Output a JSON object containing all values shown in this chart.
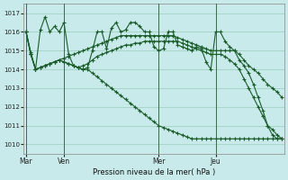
{
  "background_color": "#c8eaea",
  "grid_color": "#99ccbb",
  "line_color": "#1a5c2a",
  "title": "Pression niveau de la mer( hPa )",
  "ylim": [
    1009.5,
    1017.5
  ],
  "yticks": [
    1010,
    1011,
    1012,
    1013,
    1014,
    1015,
    1016,
    1017
  ],
  "day_labels": [
    "Mar",
    "Ven",
    "Mer",
    "Jeu"
  ],
  "day_positions": [
    0,
    8,
    28,
    40
  ],
  "total_points": 56,
  "s1_y": [
    1016.0,
    1014.8,
    1014.0,
    1016.1,
    1016.8,
    1016.0,
    1016.3,
    1016.0,
    1016.5,
    1014.8,
    1014.2,
    1014.1,
    1014.0,
    1014.1,
    1015.0,
    1016.0,
    1016.0,
    1015.1,
    1016.2,
    1016.5,
    1016.0,
    1016.1,
    1016.5,
    1016.5,
    1016.3,
    1016.0,
    1016.0,
    1015.2,
    1015.0,
    1015.1,
    1016.0,
    1016.0,
    1015.3,
    1015.2,
    1015.1,
    1015.0,
    1015.2,
    1015.1,
    1014.4,
    1014.0,
    1016.0,
    1016.0,
    1015.5,
    1015.2,
    1015.0,
    1014.5,
    1014.2,
    1013.8,
    1013.2,
    1012.5,
    1011.8,
    1011.0,
    1010.5,
    1010.3,
    1010.3,
    1010.3
  ],
  "s2_y": [
    1016.0,
    1014.9,
    1014.0,
    1014.1,
    1014.2,
    1014.3,
    1014.4,
    1014.5,
    1014.6,
    1014.7,
    1014.8,
    1014.9,
    1015.0,
    1015.1,
    1015.2,
    1015.3,
    1015.4,
    1015.5,
    1015.6,
    1015.7,
    1015.8,
    1015.8,
    1015.8,
    1015.8,
    1015.8,
    1015.8,
    1015.8,
    1015.8,
    1015.8,
    1015.8,
    1015.8,
    1015.8,
    1015.7,
    1015.6,
    1015.5,
    1015.4,
    1015.3,
    1015.2,
    1015.1,
    1015.0,
    1015.0,
    1015.0,
    1015.0,
    1015.0,
    1015.0,
    1014.8,
    1014.5,
    1014.2,
    1014.0,
    1013.8,
    1013.5,
    1013.2,
    1013.0,
    1012.8,
    1012.5,
    1012.2
  ],
  "s3_y": [
    1016.0,
    1014.8,
    1014.0,
    1014.1,
    1014.2,
    1014.3,
    1014.4,
    1014.5,
    1014.4,
    1014.3,
    1014.2,
    1014.1,
    1014.2,
    1014.3,
    1014.5,
    1014.7,
    1014.8,
    1014.9,
    1015.0,
    1015.1,
    1015.2,
    1015.3,
    1015.3,
    1015.4,
    1015.4,
    1015.5,
    1015.5,
    1015.5,
    1015.5,
    1015.5,
    1015.5,
    1015.5,
    1015.5,
    1015.4,
    1015.3,
    1015.2,
    1015.1,
    1015.0,
    1014.9,
    1014.8,
    1014.8,
    1014.8,
    1014.7,
    1014.5,
    1014.3,
    1014.0,
    1013.5,
    1013.0,
    1012.5,
    1012.0,
    1011.5,
    1011.0,
    1010.8,
    1010.5,
    1010.3,
    1010.3
  ],
  "s4_y": [
    1016.0,
    1014.8,
    1014.0,
    1014.1,
    1014.2,
    1014.3,
    1014.4,
    1014.5,
    1014.4,
    1014.3,
    1014.2,
    1014.1,
    1014.0,
    1014.0,
    1013.8,
    1013.6,
    1013.4,
    1013.2,
    1013.0,
    1012.8,
    1012.6,
    1012.4,
    1012.2,
    1012.0,
    1011.8,
    1011.6,
    1011.4,
    1011.2,
    1011.0,
    1010.9,
    1010.8,
    1010.7,
    1010.6,
    1010.5,
    1010.4,
    1010.3,
    1010.3,
    1010.3,
    1010.3,
    1010.3,
    1010.3,
    1010.3,
    1010.3,
    1010.3,
    1010.3,
    1010.3,
    1010.3,
    1010.3,
    1010.3,
    1010.3,
    1010.3,
    1010.3,
    1010.3,
    1010.3,
    1010.3,
    1010.3
  ]
}
